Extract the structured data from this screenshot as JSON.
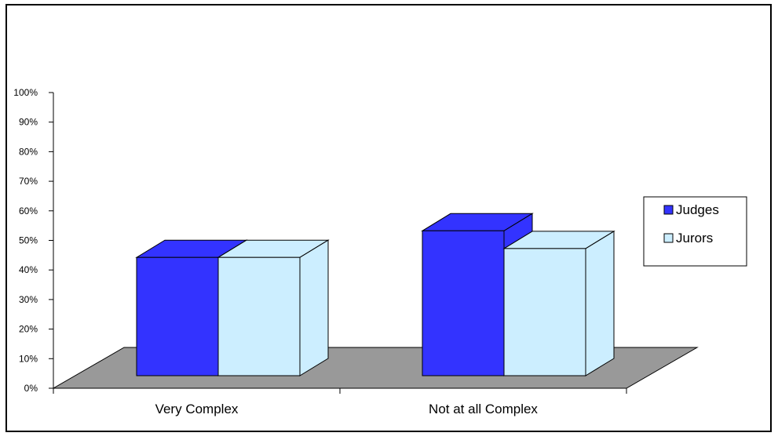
{
  "chart_data": {
    "type": "bar",
    "style": "3d-clustered-column",
    "categories": [
      "Very Complex",
      "Not at all Complex"
    ],
    "series": [
      {
        "name": "Judges",
        "values": [
          40,
          49
        ],
        "color": "#3333ff"
      },
      {
        "name": "Jurors",
        "values": [
          40,
          43
        ],
        "color": "#cceeff"
      }
    ],
    "y_ticks": [
      "0%",
      "10%",
      "20%",
      "30%",
      "40%",
      "50%",
      "60%",
      "70%",
      "80%",
      "90%",
      "100%"
    ],
    "ylim": [
      0,
      100
    ],
    "y_unit": "%",
    "grid": false,
    "floor_color": "#999999",
    "legend_position": "right",
    "title": "",
    "xlabel": "",
    "ylabel": ""
  }
}
